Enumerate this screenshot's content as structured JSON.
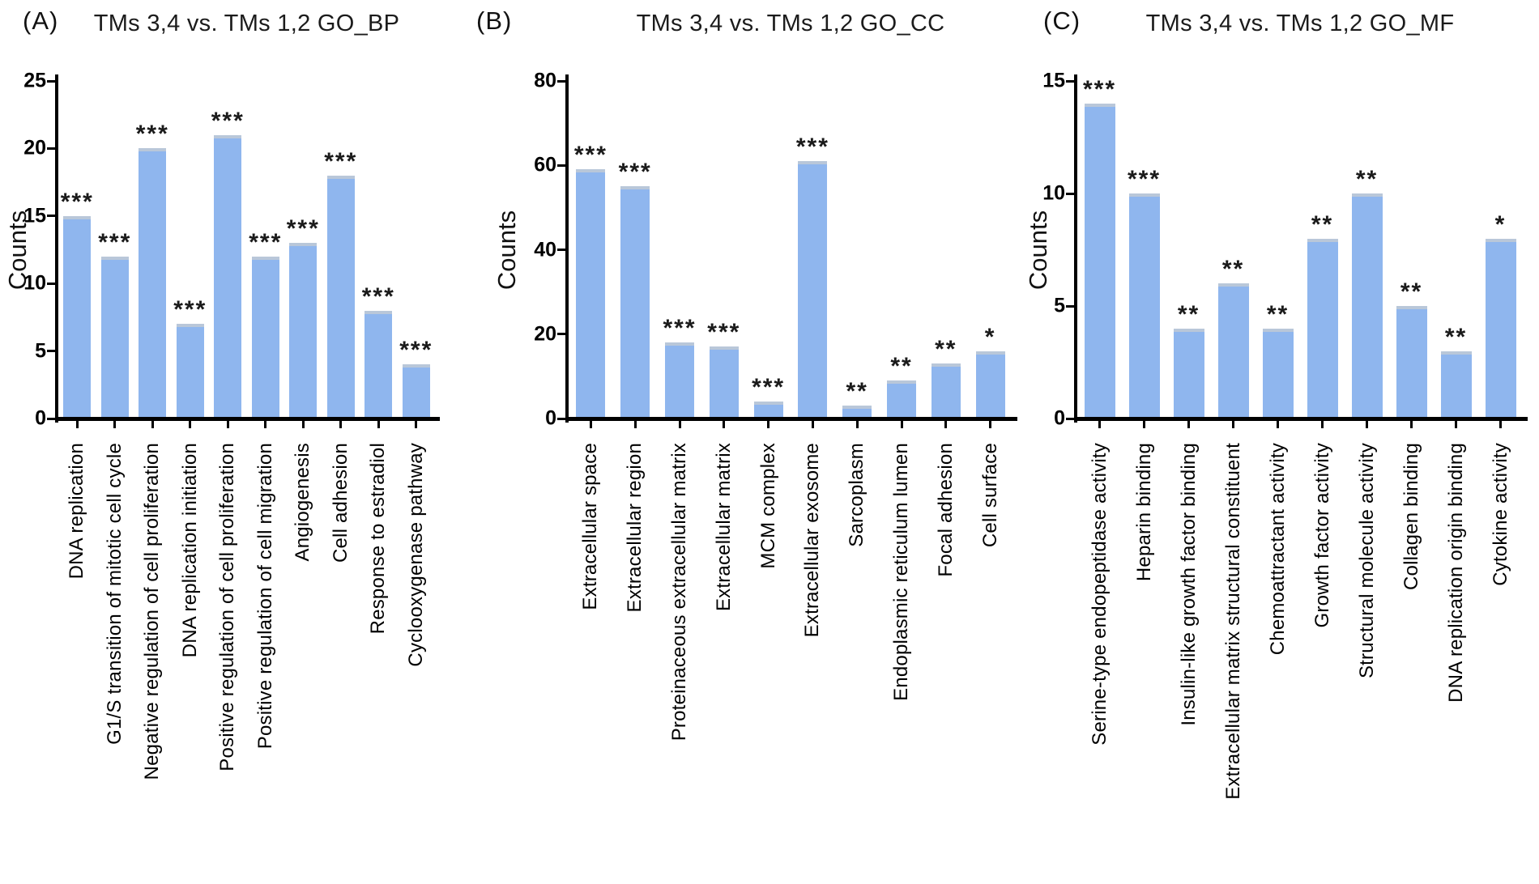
{
  "figure_description": "GO enrichment bar charts",
  "colors": {
    "bar_fill": "#8fb6ee",
    "bar_cap": "#b9c7d9",
    "axis": "#000000",
    "text": "#111111",
    "background": "#ffffff"
  },
  "chart_data": [
    {
      "type": "bar",
      "tag": "(A)",
      "title": "TMs 3,4 vs. TMs 1,2 GO_BP",
      "ylabel": "Counts",
      "xlabel": "",
      "ylim": [
        0,
        25
      ],
      "yticks": [
        0,
        5,
        10,
        15,
        20,
        25
      ],
      "grid": false,
      "legend": "none",
      "categories": [
        "DNA replication",
        "G1/S transition of mitotic cell cycle",
        "Negative regulation of cell proliferation",
        "DNA replication initiation",
        "Positive regulation of cell proliferation",
        "Positive regulation of cell migration",
        "Angiogenesis",
        "Cell adhesion",
        "Response to estradiol",
        "Cyclooxygenase pathway"
      ],
      "values": [
        15,
        12,
        20,
        7,
        21,
        12,
        13,
        18,
        8,
        4
      ],
      "significance": [
        "***",
        "***",
        "***",
        "***",
        "***",
        "***",
        "***",
        "***",
        "***",
        "***"
      ]
    },
    {
      "type": "bar",
      "tag": "(B)",
      "title": "TMs 3,4 vs. TMs 1,2 GO_CC",
      "ylabel": "Counts",
      "xlabel": "",
      "ylim": [
        0,
        80
      ],
      "yticks": [
        0,
        20,
        40,
        60,
        80
      ],
      "grid": false,
      "legend": "none",
      "categories": [
        "Extracellular space",
        "Extracellular region",
        "Proteinaceous extracellular matrix",
        "Extracellular matrix",
        "MCM complex",
        "Extracellular exosome",
        "Sarcoplasm",
        "Endoplasmic reticulum lumen",
        "Focal adhesion",
        "Cell surface"
      ],
      "values": [
        59,
        55,
        18,
        17,
        4,
        61,
        3,
        9,
        13,
        16
      ],
      "significance": [
        "***",
        "***",
        "***",
        "***",
        "***",
        "***",
        "**",
        "**",
        "**",
        "*"
      ]
    },
    {
      "type": "bar",
      "tag": "(C)",
      "title": "TMs 3,4 vs. TMs 1,2 GO_MF",
      "ylabel": "Counts",
      "xlabel": "",
      "ylim": [
        0,
        15
      ],
      "yticks": [
        0,
        5,
        10,
        15
      ],
      "grid": false,
      "legend": "none",
      "categories": [
        "Serine-type endopeptidase activity",
        "Heparin binding",
        "Insulin-like growth factor binding",
        "Extracellular matrix structural constituent",
        "Chemoattractant activity",
        "Growth factor activity",
        "Structural molecule activity",
        "Collagen binding",
        "DNA replication origin binding",
        "Cytokine activity"
      ],
      "values": [
        14,
        10,
        4,
        6,
        4,
        8,
        10,
        5,
        3,
        8
      ],
      "significance": [
        "***",
        "***",
        "**",
        "**",
        "**",
        "**",
        "**",
        "**",
        "**",
        "*"
      ]
    }
  ]
}
